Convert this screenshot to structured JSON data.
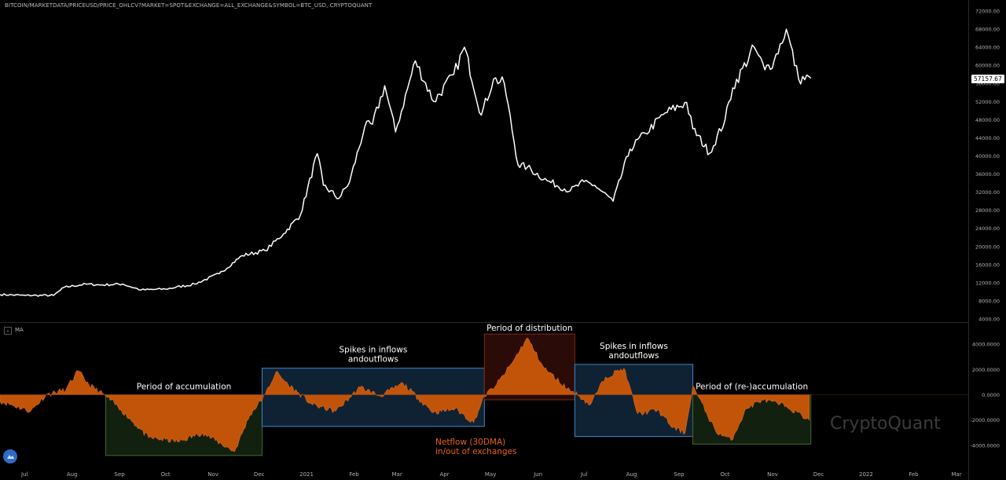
{
  "header": {
    "title": "BITCOIN/MARKETDATA/PRICEUSD/PRICE_OHLCV?MARKET=SPOT&EXCHANGE=ALL_EXCHANGE&SYMBOL=BTC_USD, CRYPTOQUANT",
    "indicator_label": "MA"
  },
  "watermark": "CryptoQuant",
  "last_price_label": "57157.67",
  "colors": {
    "background": "#000000",
    "price_line": "#ffffff",
    "netflow_fill": "#c2540a",
    "accumulation_box": "#12200f",
    "inflow_box": "#0f2234",
    "distribution_box": "#2a0b07",
    "axis_text": "#b2b2b2",
    "note_text": "#e8621c"
  },
  "chart_data": [
    {
      "type": "line",
      "title": "BITCOIN/MARKETDATA/PRICEUSD/PRICE_OHLCV?MARKET=SPOT&EXCHANGE=ALL_EXCHANGE&SYMBOL=BTC_USD, CRYPTOQUANT",
      "x_axis": "time",
      "y_ticks": [
        "72000.00",
        "68000.00",
        "64000.00",
        "60000.00",
        "56000.00",
        "52000.00",
        "48000.00",
        "44000.00",
        "40000.00",
        "36000.00",
        "32000.00",
        "28000.00",
        "24000.00",
        "20000.00",
        "16000.00",
        "12000.00",
        "8000.00",
        "4000.00"
      ],
      "ylim": [
        4000,
        72000
      ],
      "series": [
        {
          "x": [
            "2020-06-15",
            "2020-07-01",
            "2020-07-20",
            "2020-07-27",
            "2020-08-10",
            "2020-08-20",
            "2020-09-03",
            "2020-09-15",
            "2020-10-01",
            "2020-10-20",
            "2020-11-05",
            "2020-11-20",
            "2020-12-05",
            "2020-12-17",
            "2020-12-28",
            "2021-01-08",
            "2021-01-12",
            "2021-01-22",
            "2021-01-29",
            "2021-02-08",
            "2021-02-13",
            "2021-02-21",
            "2021-02-28",
            "2021-03-13",
            "2021-03-25",
            "2021-04-07",
            "2021-04-14",
            "2021-04-25",
            "2021-05-03",
            "2021-05-10",
            "2021-05-19",
            "2021-05-25",
            "2021-06-07",
            "2021-06-22",
            "2021-07-01",
            "2021-07-08",
            "2021-07-20",
            "2021-07-31",
            "2021-08-10",
            "2021-08-23",
            "2021-09-06",
            "2021-09-10",
            "2021-09-21",
            "2021-10-01",
            "2021-10-06",
            "2021-10-20",
            "2021-10-27",
            "2021-11-02",
            "2021-11-10",
            "2021-11-18",
            "2021-11-26"
          ],
          "values": [
            9400,
            9200,
            9200,
            11000,
            11700,
            11500,
            11700,
            10400,
            10600,
            11700,
            14000,
            18000,
            19100,
            22800,
            27000,
            40500,
            33500,
            30600,
            34200,
            46500,
            47000,
            55500,
            45300,
            61000,
            52000,
            58000,
            64000,
            49000,
            57000,
            56000,
            38000,
            37500,
            34500,
            32300,
            34300,
            33500,
            30000,
            41500,
            45000,
            49500,
            51800,
            46000,
            40600,
            48000,
            55000,
            64000,
            59000,
            61000,
            68000,
            57000,
            57157.67
          ]
        }
      ]
    },
    {
      "type": "area",
      "title": "",
      "series_name": "MA",
      "y_ticks": [
        "4000.0000",
        "2000.0000",
        "0.0000",
        "-2000.0000",
        "-4000.0000"
      ],
      "ylim": [
        -5000,
        5000
      ],
      "series": [
        {
          "name": "MA",
          "x": [
            "2020-06-15",
            "2020-07-05",
            "2020-07-15",
            "2020-07-28",
            "2020-08-05",
            "2020-08-12",
            "2020-08-24",
            "2020-09-02",
            "2020-09-20",
            "2020-10-10",
            "2020-10-25",
            "2020-11-15",
            "2020-11-25",
            "2020-12-05",
            "2020-12-12",
            "2020-12-20",
            "2021-01-05",
            "2021-01-20",
            "2021-02-05",
            "2021-02-18",
            "2021-03-05",
            "2021-03-15",
            "2021-03-25",
            "2021-04-08",
            "2021-04-20",
            "2021-04-27",
            "2021-05-05",
            "2021-05-15",
            "2021-05-25",
            "2021-06-05",
            "2021-06-20",
            "2021-06-28",
            "2021-07-05",
            "2021-07-15",
            "2021-07-27",
            "2021-08-05",
            "2021-08-18",
            "2021-08-28",
            "2021-09-05",
            "2021-09-10",
            "2021-09-25",
            "2021-10-05",
            "2021-10-15",
            "2021-10-25",
            "2021-11-10",
            "2021-11-25"
          ],
          "values": [
            -500,
            -1300,
            0,
            400,
            1900,
            800,
            -200,
            -1200,
            -3400,
            -3700,
            -3000,
            -4500,
            -1600,
            0,
            1800,
            800,
            -800,
            -1300,
            600,
            -100,
            900,
            -300,
            -1400,
            -1100,
            -2200,
            -100,
            800,
            2500,
            4500,
            2100,
            500,
            -100,
            -800,
            1400,
            2100,
            -1500,
            -1200,
            -2600,
            -3000,
            700,
            -2900,
            -3600,
            -1100,
            -400,
            -900,
            -2000
          ]
        }
      ],
      "regions": [
        {
          "label": "Period of accumulation",
          "start": "2020-08-23",
          "end": "2020-12-03",
          "kind": "accumulation"
        },
        {
          "label": "Spikes in inflows andoutflows",
          "start": "2020-12-03",
          "end": "2021-04-27",
          "kind": "inflow"
        },
        {
          "label": "Period of distribution",
          "start": "2021-04-27",
          "end": "2021-06-25",
          "kind": "distribution"
        },
        {
          "label": "Spikes in inflows andoutflows",
          "start": "2021-06-25",
          "end": "2021-09-10",
          "kind": "inflow"
        },
        {
          "label": "Period of (re-)accumulation",
          "start": "2021-09-10",
          "end": "2021-11-26",
          "kind": "accumulation"
        }
      ],
      "annotation": {
        "line1": "Netflow (30DMA)",
        "line2": "in/out of exchanges"
      }
    }
  ],
  "time_axis": {
    "labels": [
      {
        "text": "Jul",
        "date": "2020-07-01"
      },
      {
        "text": "Aug",
        "date": "2020-08-01"
      },
      {
        "text": "Sep",
        "date": "2020-09-01"
      },
      {
        "text": "Oct",
        "date": "2020-10-01"
      },
      {
        "text": "Nov",
        "date": "2020-11-01"
      },
      {
        "text": "Dec",
        "date": "2020-12-01"
      },
      {
        "text": "2021",
        "date": "2021-01-01"
      },
      {
        "text": "Feb",
        "date": "2021-02-01"
      },
      {
        "text": "Mar",
        "date": "2021-03-01"
      },
      {
        "text": "Apr",
        "date": "2021-04-01"
      },
      {
        "text": "May",
        "date": "2021-05-01"
      },
      {
        "text": "Jun",
        "date": "2021-06-01"
      },
      {
        "text": "Jul",
        "date": "2021-07-01"
      },
      {
        "text": "Aug",
        "date": "2021-08-01"
      },
      {
        "text": "Sep",
        "date": "2021-09-01"
      },
      {
        "text": "Oct",
        "date": "2021-10-01"
      },
      {
        "text": "Nov",
        "date": "2021-11-01"
      },
      {
        "text": "Dec",
        "date": "2021-12-01"
      },
      {
        "text": "2022",
        "date": "2022-01-01"
      },
      {
        "text": "Feb",
        "date": "2022-02-01"
      },
      {
        "text": "Mar",
        "date": "2022-03-01"
      }
    ]
  }
}
